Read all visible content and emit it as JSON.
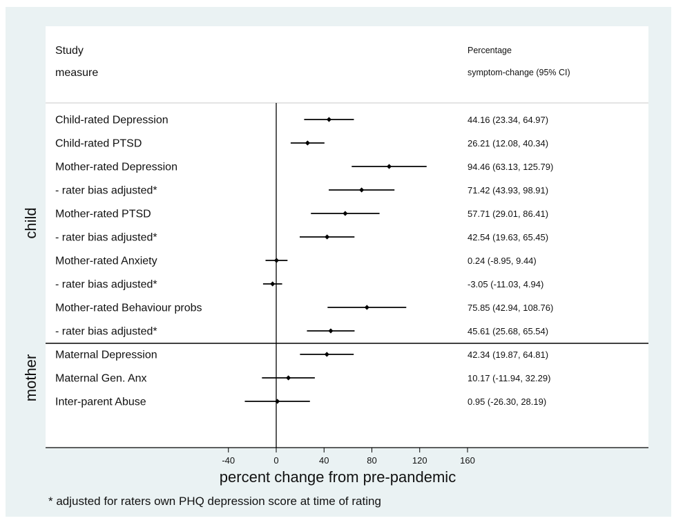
{
  "chart_data": {
    "type": "forest",
    "header": {
      "col1_line1": "Study",
      "col1_line2": "measure",
      "col2_line1": "Percentage",
      "col2_line2": "symptom-change (95% CI)"
    },
    "groups": [
      {
        "name": "child",
        "rows": [
          0,
          9
        ]
      },
      {
        "name": "mother",
        "rows": [
          10,
          12
        ]
      }
    ],
    "rows": [
      {
        "label": "Child-rated Depression",
        "est": 44.16,
        "lo": 23.34,
        "hi": 64.97,
        "ci_text": "44.16 (23.34, 64.97)"
      },
      {
        "label": "Child-rated PTSD",
        "est": 26.21,
        "lo": 12.08,
        "hi": 40.34,
        "ci_text": "26.21 (12.08, 40.34)"
      },
      {
        "label": "Mother-rated Depression",
        "est": 94.46,
        "lo": 63.13,
        "hi": 125.79,
        "ci_text": "94.46 (63.13, 125.79)"
      },
      {
        "label": "- rater bias adjusted*",
        "est": 71.42,
        "lo": 43.93,
        "hi": 98.91,
        "ci_text": "71.42 (43.93, 98.91)"
      },
      {
        "label": "Mother-rated PTSD",
        "est": 57.71,
        "lo": 29.01,
        "hi": 86.41,
        "ci_text": "57.71 (29.01, 86.41)"
      },
      {
        "label": "- rater bias adjusted*",
        "est": 42.54,
        "lo": 19.63,
        "hi": 65.45,
        "ci_text": "42.54 (19.63, 65.45)"
      },
      {
        "label": "Mother-rated Anxiety",
        "est": 0.24,
        "lo": -8.95,
        "hi": 9.44,
        "ci_text": "0.24 (-8.95, 9.44)"
      },
      {
        "label": "- rater bias adjusted*",
        "est": -3.05,
        "lo": -11.03,
        "hi": 4.94,
        "ci_text": "-3.05 (-11.03, 4.94)"
      },
      {
        "label": "Mother-rated Behaviour probs",
        "est": 75.85,
        "lo": 42.94,
        "hi": 108.76,
        "ci_text": "75.85 (42.94, 108.76)"
      },
      {
        "label": "- rater bias adjusted*",
        "est": 45.61,
        "lo": 25.68,
        "hi": 65.54,
        "ci_text": "45.61 (25.68, 65.54)"
      },
      {
        "label": "Maternal Depression",
        "est": 42.34,
        "lo": 19.87,
        "hi": 64.81,
        "ci_text": "42.34 (19.87, 64.81)"
      },
      {
        "label": "Maternal Gen. Anx",
        "est": 10.17,
        "lo": -11.94,
        "hi": 32.29,
        "ci_text": "10.17 (-11.94, 32.29)"
      },
      {
        "label": "Inter-parent Abuse",
        "est": 0.95,
        "lo": -26.3,
        "hi": 28.19,
        "ci_text": "0.95 (-26.30, 28.19)"
      }
    ],
    "x_ticks": [
      -40,
      0,
      40,
      80,
      120,
      160
    ],
    "xlim": [
      -40,
      160
    ],
    "reference_line": 0,
    "xlabel": "percent change from pre-pandemic",
    "footnote": "* adjusted for raters own PHQ depression score at time of rating",
    "colors": {
      "background": "#eaf2f3",
      "plot": "#ffffff",
      "marks": "#000000"
    }
  }
}
